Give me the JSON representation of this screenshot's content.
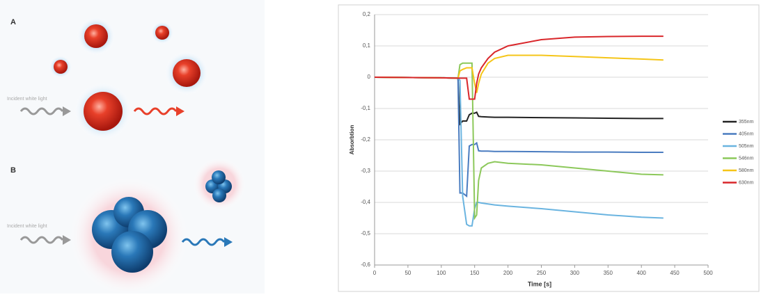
{
  "illustration": {
    "panels": [
      {
        "label": "A",
        "caption": "Incident white light"
      },
      {
        "label": "B",
        "caption": "Incident white light"
      }
    ]
  },
  "chart_data": {
    "type": "line",
    "x_label": "Time [s]",
    "y_label": "Absorbtion",
    "x": [
      0,
      100,
      125,
      128,
      132,
      138,
      142,
      146,
      150,
      153,
      156,
      160,
      170,
      180,
      200,
      250,
      300,
      350,
      400,
      433
    ],
    "series": [
      {
        "name": "355nm",
        "color": "#222222",
        "values": [
          0,
          -0.002,
          -0.003,
          -0.15,
          -0.14,
          -0.14,
          -0.12,
          -0.115,
          -0.115,
          -0.112,
          -0.125,
          -0.126,
          -0.127,
          -0.128,
          -0.128,
          -0.129,
          -0.13,
          -0.131,
          -0.132,
          -0.132
        ]
      },
      {
        "name": "405nm",
        "color": "#4a7cc0",
        "values": [
          0,
          -0.002,
          -0.003,
          -0.37,
          -0.37,
          -0.38,
          -0.22,
          -0.215,
          -0.215,
          -0.21,
          -0.235,
          -0.236,
          -0.236,
          -0.237,
          -0.237,
          -0.238,
          -0.239,
          -0.239,
          -0.24,
          -0.24
        ]
      },
      {
        "name": "505nm",
        "color": "#6ab4e0",
        "values": [
          0,
          -0.002,
          -0.003,
          -0.01,
          -0.38,
          -0.47,
          -0.475,
          -0.475,
          -0.42,
          -0.4,
          -0.4,
          -0.402,
          -0.405,
          -0.408,
          -0.412,
          -0.42,
          -0.43,
          -0.44,
          -0.447,
          -0.45
        ]
      },
      {
        "name": "546nm",
        "color": "#8cc85a",
        "values": [
          0,
          -0.002,
          -0.003,
          0.04,
          0.045,
          0.045,
          0.045,
          0.045,
          -0.45,
          -0.44,
          -0.33,
          -0.29,
          -0.275,
          -0.27,
          -0.275,
          -0.28,
          -0.29,
          -0.3,
          -0.31,
          -0.312
        ]
      },
      {
        "name": "580nm",
        "color": "#f5c518",
        "values": [
          0,
          -0.002,
          -0.003,
          0.02,
          0.025,
          0.03,
          0.03,
          0.03,
          -0.02,
          -0.05,
          -0.02,
          0.01,
          0.045,
          0.06,
          0.07,
          0.07,
          0.066,
          0.062,
          0.058,
          0.055
        ]
      },
      {
        "name": "630nm",
        "color": "#d9262a",
        "values": [
          0,
          -0.002,
          -0.003,
          -0.003,
          -0.003,
          -0.003,
          -0.07,
          -0.07,
          -0.07,
          -0.02,
          0.01,
          0.03,
          0.06,
          0.08,
          0.1,
          0.12,
          0.128,
          0.13,
          0.131,
          0.131
        ]
      }
    ],
    "xlim": [
      0,
      500
    ],
    "xticks": [
      0,
      50,
      100,
      150,
      200,
      250,
      300,
      350,
      400,
      450,
      500
    ],
    "ylim": [
      -0.6,
      0.2
    ],
    "yticks": [
      {
        "value": 0.2,
        "label": "0,2"
      },
      {
        "value": 0.1,
        "label": "0,1"
      },
      0,
      {
        "value": -0.1,
        "label": "-0,1"
      },
      {
        "value": -0.2,
        "label": "-0,2"
      },
      {
        "value": -0.3,
        "label": "-0,3"
      },
      {
        "value": -0.4,
        "label": "-0,4"
      },
      {
        "value": -0.5,
        "label": "-0,5"
      },
      {
        "value": -0.6,
        "label": "-0,6"
      }
    ],
    "grid": true,
    "legend": "right"
  }
}
